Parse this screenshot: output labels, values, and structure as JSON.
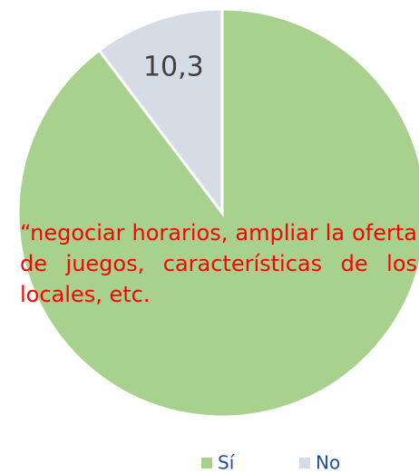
{
  "chart_data": {
    "type": "pie",
    "categories": [
      "Sí",
      "No"
    ],
    "values": [
      89.7,
      10.3
    ],
    "value_labels": [
      null,
      "10,3"
    ],
    "colors": [
      "#a9d18e",
      "#d6dce5"
    ],
    "legend": "bottom",
    "annotation": "“negociar horarios, ampliar la oferta de juegos, características de los locales, etc."
  }
}
